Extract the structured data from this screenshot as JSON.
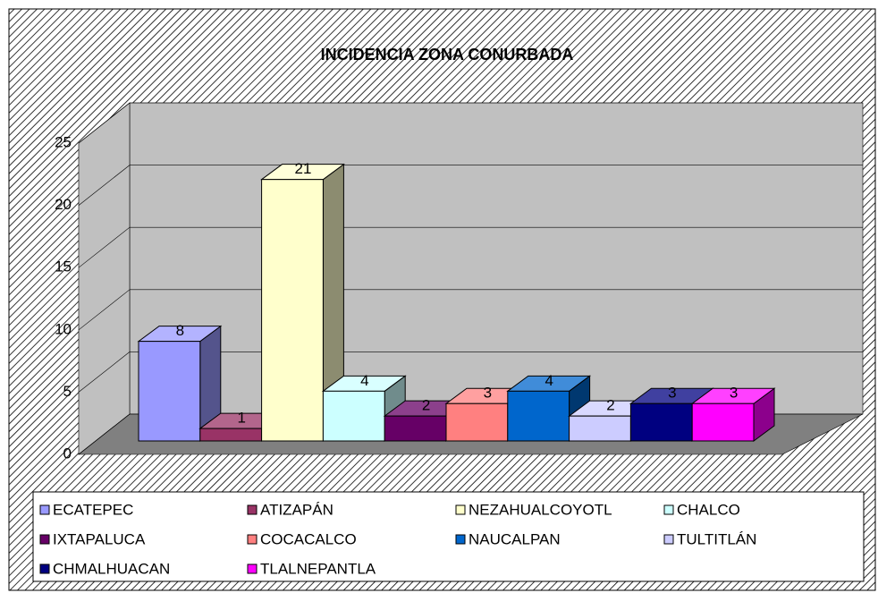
{
  "chart_data": {
    "type": "bar3d",
    "title": "INCIDENCIA ZONA CONURBADA",
    "series": [
      {
        "name": "ECATEPEC",
        "color": "#9999FF",
        "values": [
          8
        ]
      },
      {
        "name": "ATIZAPÁN",
        "color": "#993366",
        "values": [
          1
        ]
      },
      {
        "name": "NEZAHUALCOYOTL",
        "color": "#FFFFCC",
        "values": [
          21
        ]
      },
      {
        "name": "CHALCO",
        "color": "#CCFFFF",
        "values": [
          4
        ]
      },
      {
        "name": "IXTAPALUCA",
        "color": "#660066",
        "values": [
          2
        ]
      },
      {
        "name": "COCACALCO",
        "color": "#FF8080",
        "values": [
          3
        ]
      },
      {
        "name": "NAUCALPAN",
        "color": "#0066CC",
        "values": [
          4
        ]
      },
      {
        "name": "TULTITLÁN",
        "color": "#CCCCFF",
        "values": [
          2
        ]
      },
      {
        "name": "CHMALHUACAN",
        "color": "#000080",
        "values": [
          3
        ]
      },
      {
        "name": "TLALNEPANTLA",
        "color": "#FF00FF",
        "values": [
          3
        ]
      }
    ],
    "ylim": [
      0,
      25
    ],
    "yticks": [
      0,
      5,
      10,
      15,
      20,
      25
    ],
    "grid": true,
    "legend": "bottom"
  }
}
